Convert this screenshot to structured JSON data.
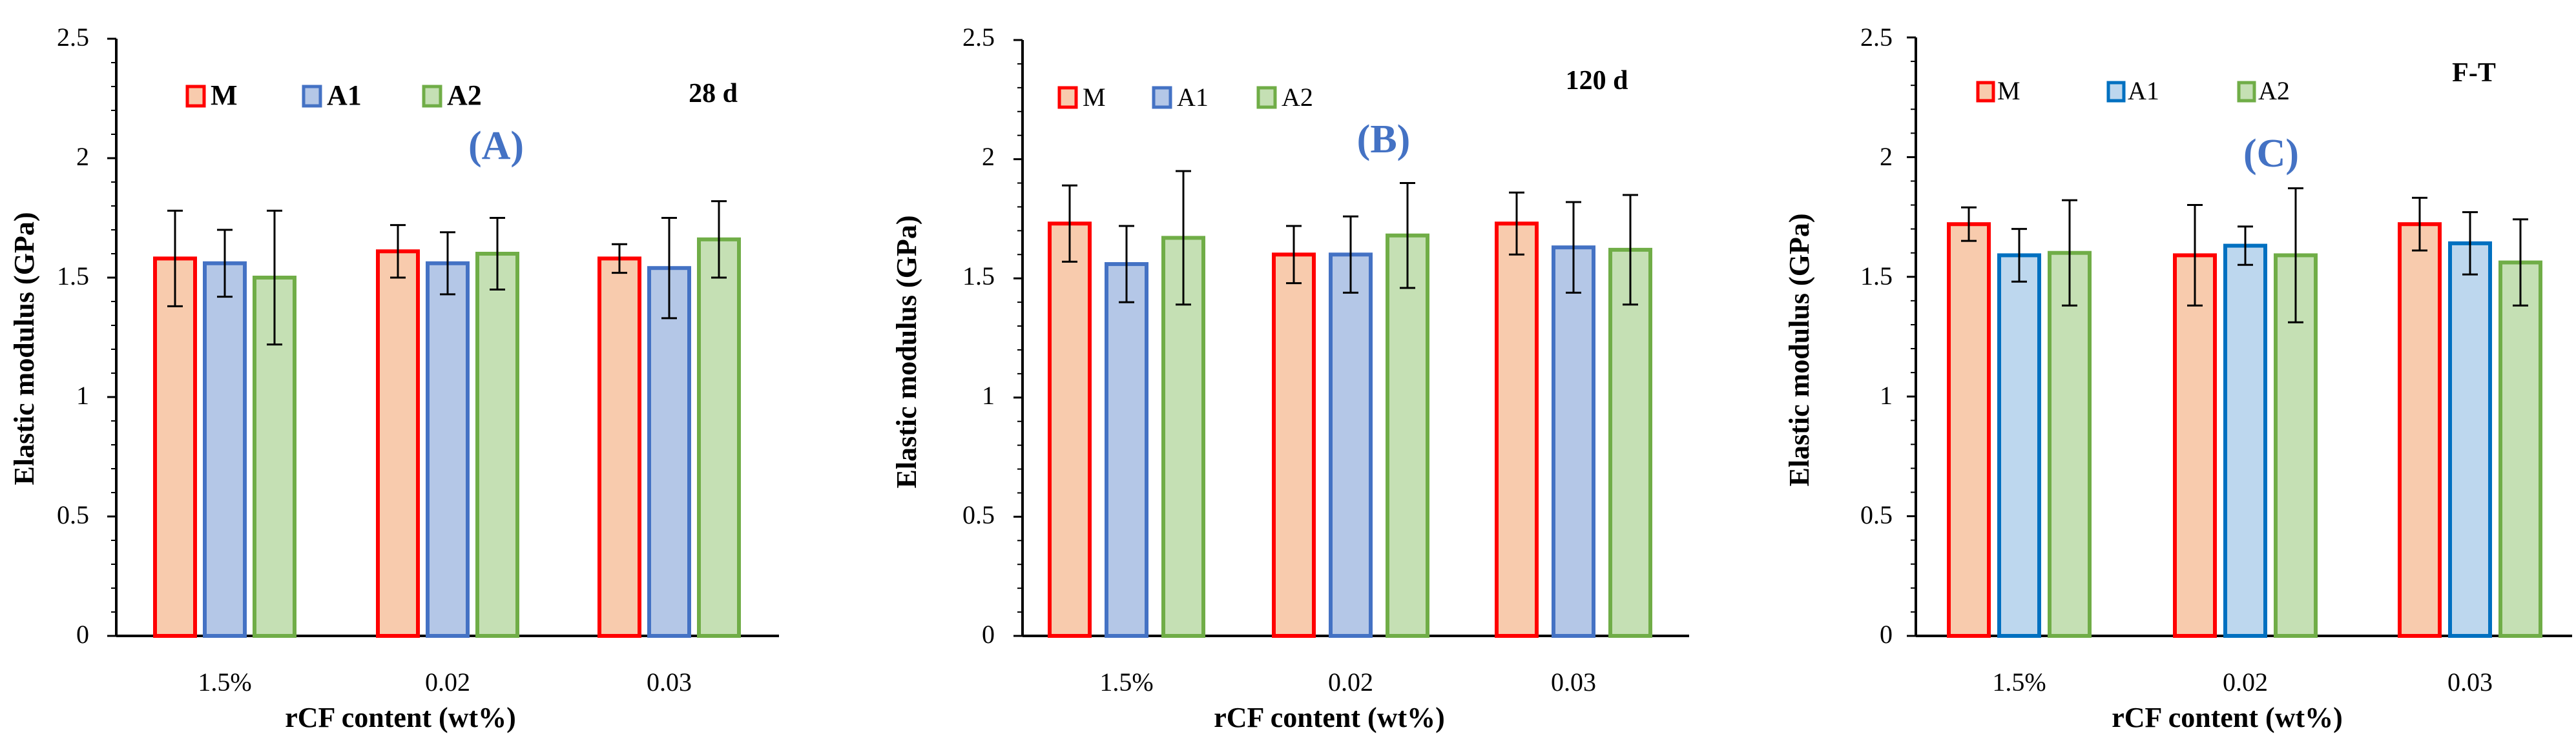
{
  "colors": {
    "M": {
      "fill": "#F8CBAD",
      "stroke": "#FF0000"
    },
    "A1": {
      "fill": "#B4C7E7",
      "stroke": "#4472C4"
    },
    "A2": {
      "fill": "#C5E0B4",
      "stroke": "#70AD47"
    },
    "A1_panelC": {
      "fill": "#BDD7EE",
      "stroke": "#0070C0"
    },
    "panel_letter": "#4472C4"
  },
  "chart_data": [
    {
      "type": "bar",
      "panel": "(A)",
      "condition": "28 d",
      "xlabel": "rCF content (wt%)",
      "ylabel": "Elastic modulus (GPa)",
      "ylim": [
        0,
        2.5
      ],
      "yticks": [
        "0",
        "0.5",
        "1",
        "1.5",
        "2",
        "2.5"
      ],
      "categories": [
        "1.5%",
        "0.02",
        "0.03"
      ],
      "legend_bold": true,
      "series": [
        {
          "name": "M",
          "values": [
            1.58,
            1.61,
            1.58
          ],
          "errors": [
            0.2,
            0.11,
            0.06
          ]
        },
        {
          "name": "A1",
          "values": [
            1.56,
            1.56,
            1.54
          ],
          "errors": [
            0.14,
            0.13,
            0.21
          ]
        },
        {
          "name": "A2",
          "values": [
            1.5,
            1.6,
            1.66
          ],
          "errors": [
            0.28,
            0.15,
            0.16
          ]
        }
      ]
    },
    {
      "type": "bar",
      "panel": "(B)",
      "condition": "120 d",
      "xlabel": "rCF content (wt%)",
      "ylabel": "Elastic modulus (GPa)",
      "ylim": [
        0,
        2.5
      ],
      "yticks": [
        "0",
        "0.5",
        "1",
        "1.5",
        "2",
        "2.5"
      ],
      "categories": [
        "1.5%",
        "0.02",
        "0.03"
      ],
      "legend_bold": false,
      "series": [
        {
          "name": "M",
          "values": [
            1.73,
            1.6,
            1.73
          ],
          "errors": [
            0.16,
            0.12,
            0.13
          ]
        },
        {
          "name": "A1",
          "values": [
            1.56,
            1.6,
            1.63
          ],
          "errors": [
            0.16,
            0.16,
            0.19
          ]
        },
        {
          "name": "A2",
          "values": [
            1.67,
            1.68,
            1.62
          ],
          "errors": [
            0.28,
            0.22,
            0.23
          ]
        }
      ]
    },
    {
      "type": "bar",
      "panel": "(C)",
      "condition": "F-T",
      "xlabel": "rCF content (wt%)",
      "ylabel": "Elastic modulus (GPa)",
      "ylim": [
        0,
        2.5
      ],
      "yticks": [
        "0",
        "0.5",
        "1",
        "1.5",
        "2",
        "2.5"
      ],
      "categories": [
        "1.5%",
        "0.02",
        "0.03"
      ],
      "legend_bold": false,
      "series": [
        {
          "name": "M",
          "values": [
            1.72,
            1.59,
            1.72
          ],
          "errors": [
            0.07,
            0.21,
            0.11
          ]
        },
        {
          "name": "A1",
          "values": [
            1.59,
            1.63,
            1.64
          ],
          "errors": [
            0.11,
            0.08,
            0.13
          ]
        },
        {
          "name": "A2",
          "values": [
            1.6,
            1.59,
            1.56
          ],
          "errors": [
            0.22,
            0.28,
            0.18
          ]
        }
      ]
    }
  ]
}
